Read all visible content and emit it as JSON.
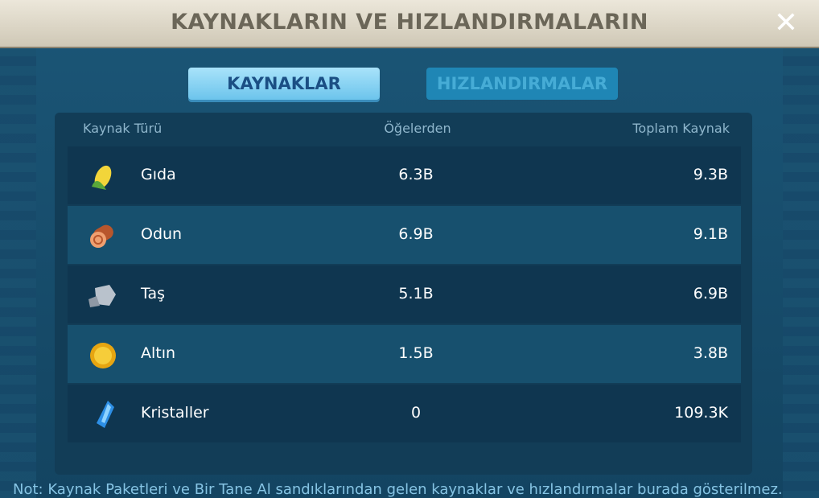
{
  "header": {
    "title": "KAYNAKLARIN VE HIZLANDIRMALARIN"
  },
  "tabs": [
    "KAYNAKLAR",
    "HIZLANDIRMALAR"
  ],
  "table": {
    "columns": [
      "Kaynak Türü",
      "Öğelerden",
      "Toplam Kaynak"
    ],
    "rows": [
      [
        "Gıda",
        "6.3B",
        "9.3B"
      ],
      [
        "Odun",
        "6.9B",
        "9.1B"
      ],
      [
        "Taş",
        "5.1B",
        "6.9B"
      ],
      [
        "Altın",
        "1.5B",
        "3.8B"
      ],
      [
        "Kristaller",
        "0",
        "109.3K"
      ]
    ]
  },
  "note": "Not: Kaynak Paketleri ve Bir Tane Al sandıklarından gelen kaynaklar ve hızlandırmalar burada gösterilmez."
}
